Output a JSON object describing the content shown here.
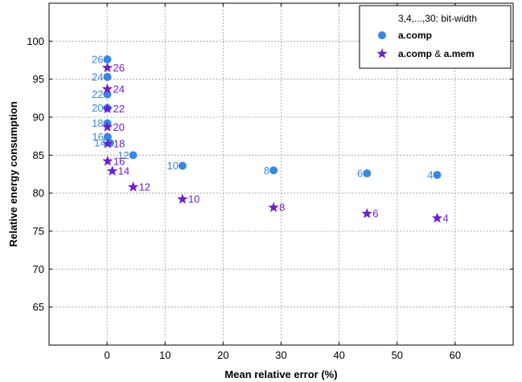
{
  "chart_data": {
    "type": "scatter",
    "xlabel": "Mean relative error (%)",
    "ylabel": "Relative energy consumption",
    "xlim": [
      -10,
      70
    ],
    "ylim": [
      60,
      105
    ],
    "x_ticks": [
      0,
      10,
      20,
      30,
      40,
      50,
      60
    ],
    "y_ticks": [
      65,
      70,
      75,
      80,
      85,
      90,
      95,
      100
    ],
    "grid": true,
    "legend_placement": "top-right",
    "legend_title": "3,4,...,30: bit-width",
    "series": [
      {
        "name": "a.comp",
        "marker": "circle",
        "color": "#3a87e0",
        "points": [
          {
            "label": "26",
            "x": 0.05,
            "y": 97.6
          },
          {
            "label": "24",
            "x": 0.05,
            "y": 95.3
          },
          {
            "label": "22",
            "x": 0.05,
            "y": 93.0
          },
          {
            "label": "20",
            "x": 0.05,
            "y": 91.2
          },
          {
            "label": "18",
            "x": 0.05,
            "y": 89.2
          },
          {
            "label": "16",
            "x": 0.1,
            "y": 87.4
          },
          {
            "label": "14",
            "x": 0.5,
            "y": 86.6
          },
          {
            "label": "12",
            "x": 4.5,
            "y": 85.0
          },
          {
            "label": "10",
            "x": 13.0,
            "y": 83.6
          },
          {
            "label": "8",
            "x": 28.7,
            "y": 83.0
          },
          {
            "label": "6",
            "x": 44.8,
            "y": 82.6
          },
          {
            "label": "4",
            "x": 56.9,
            "y": 82.4
          }
        ]
      },
      {
        "name": "a.comp & a.mem",
        "name_parts": [
          "a.comp",
          "&",
          "a.mem"
        ],
        "marker": "star",
        "color": "#6c1ed0",
        "points": [
          {
            "label": "26",
            "x": 0.05,
            "y": 96.5
          },
          {
            "label": "24",
            "x": 0.05,
            "y": 93.7
          },
          {
            "label": "22",
            "x": 0.05,
            "y": 91.1
          },
          {
            "label": "20",
            "x": 0.05,
            "y": 88.7
          },
          {
            "label": "18",
            "x": 0.1,
            "y": 86.5
          },
          {
            "label": "16",
            "x": 0.1,
            "y": 84.2
          },
          {
            "label": "14",
            "x": 0.9,
            "y": 82.9
          },
          {
            "label": "12",
            "x": 4.5,
            "y": 80.8
          },
          {
            "label": "10",
            "x": 13.0,
            "y": 79.2
          },
          {
            "label": "8",
            "x": 28.7,
            "y": 78.1
          },
          {
            "label": "6",
            "x": 44.8,
            "y": 77.3
          },
          {
            "label": "4",
            "x": 56.9,
            "y": 76.7
          }
        ]
      }
    ]
  }
}
